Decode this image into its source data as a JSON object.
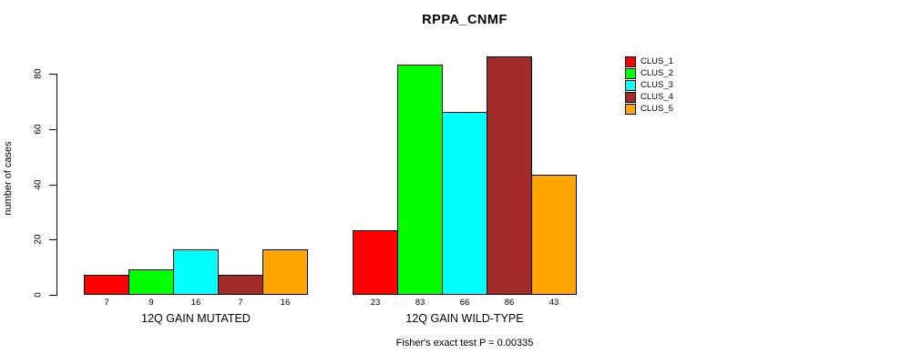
{
  "page": {
    "background_color": "#FFFFFF",
    "text_color": "#000000",
    "axis_color": "#000000"
  },
  "chart_data": {
    "type": "bar",
    "title": "RPPA_CNMF",
    "ylabel": "number of cases",
    "xlabel": "",
    "categories": [
      "12Q GAIN MUTATED",
      "12Q GAIN WILD-TYPE"
    ],
    "series": [
      {
        "name": "CLUS_1",
        "color": "#FF0000",
        "values": [
          7,
          23
        ]
      },
      {
        "name": "CLUS_2",
        "color": "#00FF00",
        "values": [
          9,
          83
        ]
      },
      {
        "name": "CLUS_3",
        "color": "#00FFFF",
        "values": [
          16,
          66
        ]
      },
      {
        "name": "CLUS_4",
        "color": "#A52A2A",
        "values": [
          7,
          86
        ]
      },
      {
        "name": "CLUS_5",
        "color": "#FFA500",
        "values": [
          16,
          43
        ]
      }
    ],
    "yticks": [
      0,
      20,
      40,
      60,
      80
    ],
    "ylim": [
      0,
      87
    ],
    "grid": false,
    "bar_value_labels_shown": true,
    "legend_position": "top-right",
    "annotation": "Fisher's exact test P = 0.00335"
  }
}
